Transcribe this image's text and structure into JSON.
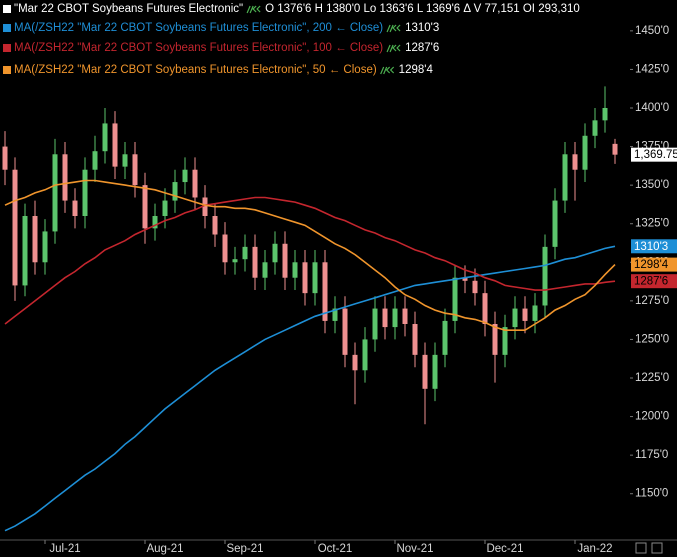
{
  "chart_data": {
    "type": "candlestick",
    "title": "\"Mar 22 CBOT Soybeans Futures Electronic\"",
    "quote": "O 1376'6 H 1380'0 Lo 1363'6 L 1369'6 Δ V 77,151 OI 293,310",
    "candles": {
      "up_color": "#5cc46c",
      "down_color": "#ee9090",
      "legend_color": "#ffffff",
      "last_label": "1,369.75",
      "open": [
        1375,
        1360,
        1285,
        1330,
        1300,
        1320,
        1370,
        1340,
        1330,
        1360,
        1372,
        1390,
        1362,
        1370,
        1350,
        1322,
        1330,
        1340,
        1352,
        1360,
        1342,
        1330,
        1318,
        1300,
        1302,
        1310,
        1290,
        1300,
        1312,
        1290,
        1300,
        1280,
        1300,
        1262,
        1270,
        1240,
        1230,
        1250,
        1270,
        1258,
        1270,
        1260,
        1240,
        1218,
        1240,
        1262,
        1290,
        1288,
        1280,
        1260,
        1240,
        1258,
        1270,
        1262,
        1272,
        1310,
        1340,
        1370,
        1360,
        1382,
        1392,
        1376.75
      ],
      "high": [
        1385,
        1368,
        1338,
        1340,
        1328,
        1380,
        1378,
        1348,
        1368,
        1382,
        1400,
        1398,
        1378,
        1378,
        1358,
        1338,
        1348,
        1360,
        1368,
        1368,
        1350,
        1338,
        1326,
        1310,
        1318,
        1318,
        1308,
        1320,
        1320,
        1308,
        1308,
        1308,
        1308,
        1278,
        1278,
        1248,
        1258,
        1278,
        1278,
        1278,
        1278,
        1268,
        1248,
        1248,
        1270,
        1298,
        1298,
        1296,
        1288,
        1268,
        1266,
        1278,
        1278,
        1280,
        1318,
        1348,
        1378,
        1378,
        1390,
        1400,
        1414,
        1380
      ],
      "low": [
        1350,
        1275,
        1278,
        1292,
        1292,
        1312,
        1332,
        1322,
        1322,
        1352,
        1364,
        1354,
        1354,
        1342,
        1312,
        1314,
        1322,
        1332,
        1344,
        1334,
        1322,
        1310,
        1292,
        1292,
        1294,
        1282,
        1282,
        1292,
        1282,
        1282,
        1272,
        1272,
        1254,
        1254,
        1232,
        1208,
        1222,
        1242,
        1250,
        1250,
        1252,
        1232,
        1195,
        1210,
        1232,
        1254,
        1280,
        1272,
        1252,
        1222,
        1232,
        1250,
        1254,
        1254,
        1264,
        1302,
        1332,
        1340,
        1352,
        1374,
        1384,
        1363.75
      ],
      "close": [
        1360,
        1285,
        1330,
        1300,
        1320,
        1370,
        1340,
        1330,
        1360,
        1372,
        1390,
        1362,
        1370,
        1350,
        1322,
        1330,
        1340,
        1352,
        1360,
        1342,
        1330,
        1318,
        1300,
        1302,
        1310,
        1290,
        1300,
        1312,
        1290,
        1300,
        1280,
        1300,
        1262,
        1270,
        1240,
        1230,
        1250,
        1270,
        1258,
        1270,
        1260,
        1240,
        1218,
        1240,
        1262,
        1290,
        1288,
        1280,
        1260,
        1240,
        1258,
        1270,
        1262,
        1272,
        1310,
        1340,
        1370,
        1360,
        1382,
        1392,
        1400,
        1369.75
      ]
    },
    "series": [
      {
        "name": "MA(/ZSH22 \"Mar 22 CBOT Soybeans Futures Electronic\", 200 ← Close)",
        "color": "#1e8fd6",
        "last_label": "1310'3",
        "values": [
          1126,
          1129,
          1133,
          1137,
          1142,
          1147,
          1152,
          1157,
          1162,
          1166,
          1171,
          1176,
          1182,
          1187,
          1193,
          1199,
          1205,
          1210,
          1215,
          1220,
          1225,
          1230,
          1234,
          1238,
          1242,
          1246,
          1250,
          1253,
          1256,
          1259,
          1262,
          1265,
          1267,
          1269,
          1271,
          1273,
          1275,
          1277,
          1279,
          1281,
          1283,
          1285,
          1286,
          1287,
          1288,
          1289,
          1290,
          1291,
          1292,
          1293,
          1294,
          1295,
          1296,
          1297,
          1298,
          1300,
          1302,
          1303,
          1305,
          1307,
          1309,
          1310.375
        ]
      },
      {
        "name": "MA(/ZSH22 \"Mar 22 CBOT Soybeans Futures Electronic\", 100 ← Close)",
        "color": "#c4262e",
        "last_label": "1287'6",
        "values": [
          1260,
          1265,
          1270,
          1275,
          1280,
          1285,
          1290,
          1294,
          1299,
          1303,
          1308,
          1311,
          1314,
          1318,
          1321,
          1324,
          1327,
          1329,
          1332,
          1334,
          1337,
          1338,
          1339,
          1340,
          1341,
          1342,
          1342,
          1341,
          1340,
          1339,
          1337,
          1335,
          1332,
          1329,
          1327,
          1324,
          1321,
          1319,
          1316,
          1314,
          1311,
          1308,
          1306,
          1303,
          1301,
          1298,
          1295,
          1293,
          1290,
          1288,
          1285,
          1284,
          1283,
          1282,
          1282,
          1283,
          1284,
          1285,
          1286,
          1286,
          1287,
          1287.75
        ]
      },
      {
        "name": "MA(/ZSH22 \"Mar 22 CBOT Soybeans Futures Electronic\", 50 ← Close)",
        "color": "#f0952c",
        "last_label": "1298'4",
        "values": [
          1337,
          1340,
          1342,
          1345,
          1347,
          1350,
          1351,
          1352,
          1353,
          1353,
          1352,
          1351,
          1350,
          1349,
          1348,
          1347,
          1345,
          1343,
          1341,
          1339,
          1337,
          1336,
          1336,
          1335,
          1335,
          1334,
          1332,
          1330,
          1328,
          1326,
          1324,
          1320,
          1316,
          1312,
          1309,
          1305,
          1300,
          1295,
          1290,
          1284,
          1279,
          1276,
          1272,
          1269,
          1267,
          1266,
          1264,
          1263,
          1261,
          1258,
          1256,
          1256,
          1256,
          1260,
          1264,
          1269,
          1272,
          1276,
          1279,
          1285,
          1292,
          1298.5
        ]
      }
    ],
    "xlim": [
      -0.5,
      62.5
    ],
    "xticks": [
      {
        "value": 6,
        "label": "Jul-21"
      },
      {
        "value": 16,
        "label": "Aug-21"
      },
      {
        "value": 24,
        "label": "Sep-21"
      },
      {
        "value": 33,
        "label": "Oct-21"
      },
      {
        "value": 41,
        "label": "Nov-21"
      },
      {
        "value": 50,
        "label": "Dec-21"
      },
      {
        "value": 59,
        "label": "Jan-22"
      }
    ],
    "ylim": [
      1120,
      1470
    ],
    "yticks": [
      {
        "value": 1150,
        "label": "1150'0"
      },
      {
        "value": 1175,
        "label": "1175'0"
      },
      {
        "value": 1200,
        "label": "1200'0"
      },
      {
        "value": 1225,
        "label": "1225'0"
      },
      {
        "value": 1250,
        "label": "1250'0"
      },
      {
        "value": 1275,
        "label": "1275'0"
      },
      {
        "value": 1300,
        "label": "1300'0"
      },
      {
        "value": 1325,
        "label": "1325'0"
      },
      {
        "value": 1350,
        "label": "1350'0"
      },
      {
        "value": 1375,
        "label": "1375'0"
      },
      {
        "value": 1400,
        "label": "1400'0"
      },
      {
        "value": 1425,
        "label": "1425'0"
      },
      {
        "value": 1450,
        "label": "1450'0"
      }
    ]
  }
}
